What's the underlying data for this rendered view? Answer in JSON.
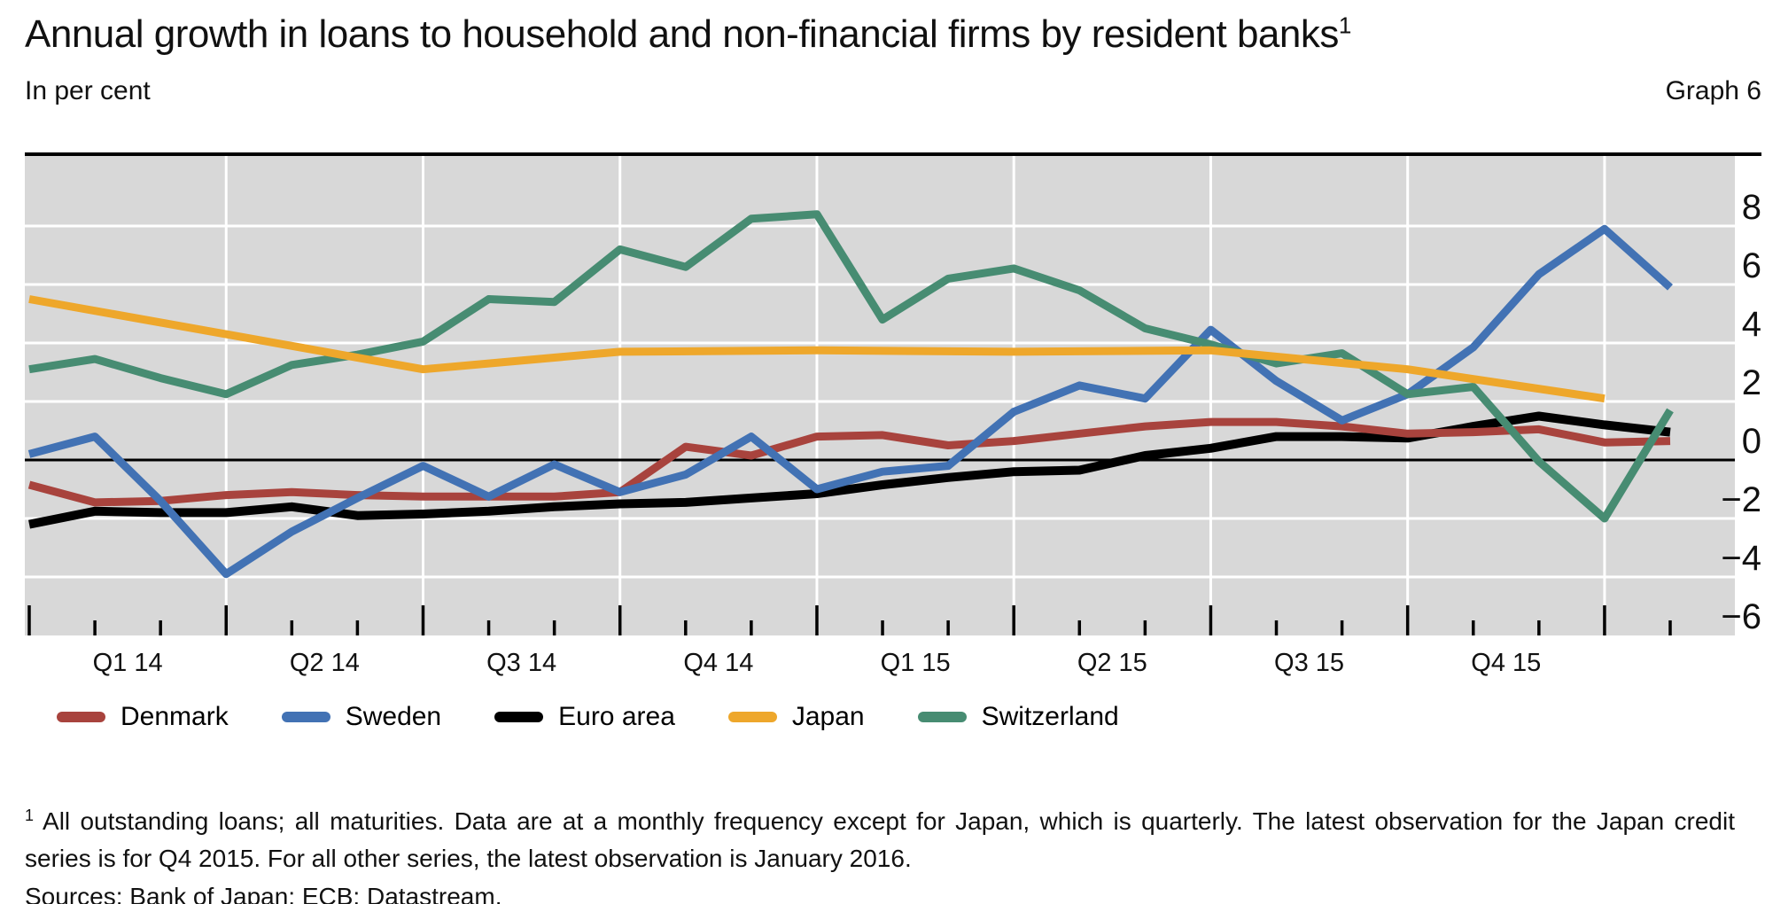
{
  "header": {
    "title": "Annual growth in loans to household and non-financial firms by resident banks",
    "title_superscript": "1",
    "unit_label": "In per cent",
    "graph_label": "Graph 6"
  },
  "chart_data": {
    "type": "line",
    "title": "Annual growth in loans to household and non-financial firms by resident banks",
    "ylabel": "Per cent",
    "xlabel": "",
    "x": [
      "Dec 2013",
      "Jan 2014",
      "Feb 2014",
      "Mar 2014",
      "Apr 2014",
      "May 2014",
      "Jun 2014",
      "Jul 2014",
      "Aug 2014",
      "Sep 2014",
      "Oct 2014",
      "Nov 2014",
      "Dec 2014",
      "Jan 2015",
      "Feb 2015",
      "Mar 2015",
      "Apr 2015",
      "May 2015",
      "Jun 2015",
      "Jul 2015",
      "Aug 2015",
      "Sep 2015",
      "Oct 2015",
      "Nov 2015",
      "Dec 2015",
      "Jan 2016"
    ],
    "series": [
      {
        "id": "denmark",
        "name": "Denmark",
        "color": "#a8433d",
        "values": [
          -0.85,
          -1.45,
          -1.4,
          -1.2,
          -1.1,
          -1.2,
          -1.25,
          -1.25,
          -1.25,
          -1.1,
          0.45,
          0.15,
          0.8,
          0.85,
          0.5,
          0.65,
          0.9,
          1.15,
          1.3,
          1.3,
          1.15,
          0.9,
          0.95,
          1.05,
          0.6,
          0.65
        ]
      },
      {
        "id": "sweden",
        "name": "Sweden",
        "color": "#4272b4",
        "values": [
          0.2,
          0.8,
          -1.4,
          -3.9,
          -2.45,
          -1.3,
          -0.2,
          -1.25,
          -0.15,
          -1.1,
          -0.5,
          0.8,
          -1.0,
          -0.4,
          -0.2,
          1.65,
          2.55,
          2.1,
          4.45,
          2.7,
          1.35,
          2.25,
          3.85,
          6.35,
          7.9,
          5.9
        ]
      },
      {
        "id": "euro_area",
        "name": "Euro area",
        "color": "#000000",
        "values": [
          -2.2,
          -1.75,
          -1.8,
          -1.8,
          -1.6,
          -1.9,
          -1.85,
          -1.75,
          -1.6,
          -1.5,
          -1.45,
          -1.3,
          -1.15,
          -0.85,
          -0.6,
          -0.4,
          -0.35,
          0.15,
          0.4,
          0.8,
          0.8,
          0.75,
          1.15,
          1.5,
          1.2,
          0.95
        ]
      },
      {
        "id": "japan",
        "name": "Japan",
        "color": "#eea72b",
        "frequency": "quarterly",
        "indices": [
          0,
          3,
          6,
          9,
          12,
          15,
          18,
          21,
          24
        ],
        "values": [
          5.5,
          4.3,
          3.1,
          3.7,
          3.75,
          3.7,
          3.75,
          3.1,
          2.1
        ]
      },
      {
        "id": "switzerland",
        "name": "Switzerland",
        "color": "#478c72",
        "values": [
          3.1,
          3.45,
          2.8,
          2.25,
          3.25,
          3.6,
          4.05,
          5.5,
          5.4,
          7.2,
          6.6,
          8.25,
          8.4,
          4.8,
          6.2,
          6.55,
          5.8,
          4.5,
          3.95,
          3.3,
          3.65,
          2.25,
          2.5,
          -0.05,
          -2.0,
          1.7
        ]
      }
    ],
    "xticks": [
      {
        "label": "Q1 14",
        "center_index": 1.5
      },
      {
        "label": "Q2 14",
        "center_index": 4.5
      },
      {
        "label": "Q3 14",
        "center_index": 7.5
      },
      {
        "label": "Q4 14",
        "center_index": 10.5
      },
      {
        "label": "Q1 15",
        "center_index": 13.5
      },
      {
        "label": "Q2 15",
        "center_index": 16.5
      },
      {
        "label": "Q3 15",
        "center_index": 19.5
      },
      {
        "label": "Q4 15",
        "center_index": 22.5
      }
    ],
    "yticks": [
      {
        "label": "8",
        "value": 8
      },
      {
        "label": "6",
        "value": 6
      },
      {
        "label": "4",
        "value": 4
      },
      {
        "label": "2",
        "value": 2
      },
      {
        "label": "0",
        "value": 0
      },
      {
        "label": "−2",
        "value": -2
      },
      {
        "label": "−4",
        "value": -4
      },
      {
        "label": "−6",
        "value": -6
      }
    ],
    "ylim": [
      -6,
      10.4
    ],
    "zero_line": true,
    "grid": {
      "horizontal_step": 2,
      "vertical_quarter_indices": [
        3,
        6,
        9,
        12,
        15,
        18,
        21,
        24
      ]
    },
    "minor_tick_every_month": true,
    "legend_position": "bottom-left",
    "colors": {
      "plot_background": "#d8d8d8",
      "gridline": "#ffffff",
      "axis_line": "#000000"
    }
  },
  "footnote": {
    "marker": "1",
    "text": "All outstanding loans; all maturities. Data are at a monthly frequency except for Japan, which is quarterly. The latest observation for the Japan credit series is for Q4 2015. For all other series, the latest observation is January 2016."
  },
  "sources": {
    "text": "Sources: Bank of Japan; ECB; Datastream."
  }
}
